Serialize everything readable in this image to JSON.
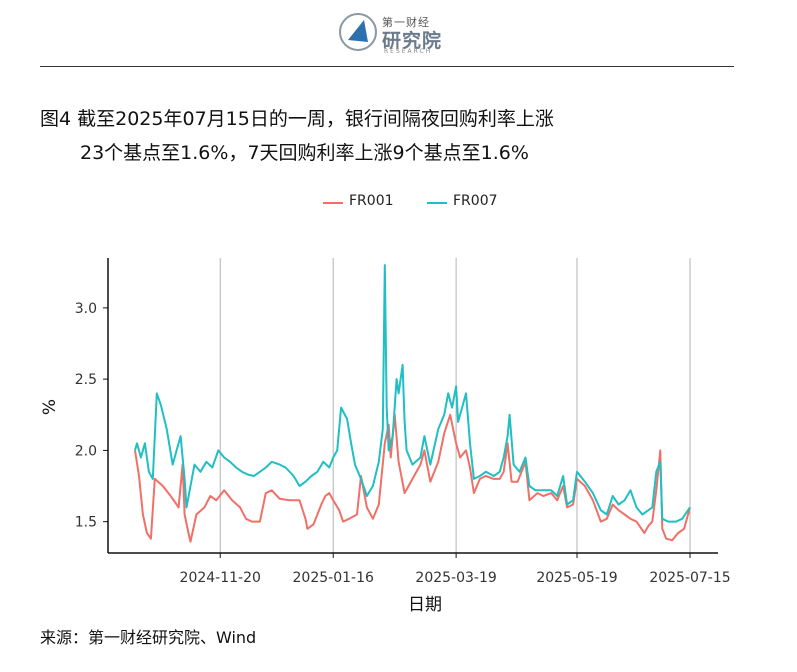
{
  "brand": {
    "small": "第一财经",
    "name": "研究院",
    "research": "RESEARCH"
  },
  "figure": {
    "title_line1": "图4  截至2025年07月15日的一周，银行间隔夜回购利率上涨",
    "title_line2": "23个基点至1.6%，7天回购利率上涨9个基点至1.6%",
    "source": "来源：第一财经研究院、Wind"
  },
  "colors": {
    "FR001": "#f07068",
    "FR007": "#1fbfc4",
    "grid": "#b3b3b3"
  },
  "chart_data": {
    "type": "line",
    "xlabel": "日期",
    "ylabel": "%",
    "x_ticks": [
      "2024-11-20",
      "2025-01-16",
      "2025-03-19",
      "2025-05-19",
      "2025-07-15"
    ],
    "y_ticks": [
      1.5,
      2.0,
      2.5,
      3.0
    ],
    "xlim": [
      "2024-10-08",
      "2025-07-15"
    ],
    "ylim": [
      1.28,
      3.35
    ],
    "grid": "vertical",
    "legend_position": "top",
    "series": [
      {
        "name": "FR001",
        "points": [
          [
            "2024-10-08",
            2.0
          ],
          [
            "2024-10-10",
            1.82
          ],
          [
            "2024-10-12",
            1.55
          ],
          [
            "2024-10-14",
            1.42
          ],
          [
            "2024-10-16",
            1.38
          ],
          [
            "2024-10-18",
            1.8
          ],
          [
            "2024-10-22",
            1.75
          ],
          [
            "2024-10-26",
            1.68
          ],
          [
            "2024-10-30",
            1.6
          ],
          [
            "2024-11-01",
            1.9
          ],
          [
            "2024-11-02",
            1.55
          ],
          [
            "2024-11-04",
            1.42
          ],
          [
            "2024-11-05",
            1.36
          ],
          [
            "2024-11-08",
            1.55
          ],
          [
            "2024-11-12",
            1.6
          ],
          [
            "2024-11-15",
            1.68
          ],
          [
            "2024-11-18",
            1.65
          ],
          [
            "2024-11-22",
            1.72
          ],
          [
            "2024-11-26",
            1.65
          ],
          [
            "2024-11-30",
            1.6
          ],
          [
            "2024-12-03",
            1.52
          ],
          [
            "2024-12-06",
            1.5
          ],
          [
            "2024-12-10",
            1.5
          ],
          [
            "2024-12-13",
            1.7
          ],
          [
            "2024-12-16",
            1.72
          ],
          [
            "2024-12-20",
            1.66
          ],
          [
            "2024-12-25",
            1.65
          ],
          [
            "2024-12-30",
            1.65
          ],
          [
            "2025-01-02",
            1.52
          ],
          [
            "2025-01-03",
            1.45
          ],
          [
            "2025-01-06",
            1.48
          ],
          [
            "2025-01-08",
            1.55
          ],
          [
            "2025-01-10",
            1.62
          ],
          [
            "2025-01-12",
            1.68
          ],
          [
            "2025-01-14",
            1.7
          ],
          [
            "2025-01-16",
            1.65
          ],
          [
            "2025-01-19",
            1.58
          ],
          [
            "2025-01-21",
            1.5
          ],
          [
            "2025-01-24",
            1.52
          ],
          [
            "2025-01-28",
            1.55
          ],
          [
            "2025-01-30",
            1.82
          ],
          [
            "2025-02-02",
            1.6
          ],
          [
            "2025-02-05",
            1.52
          ],
          [
            "2025-02-08",
            1.62
          ],
          [
            "2025-02-11",
            2.05
          ],
          [
            "2025-02-13",
            2.18
          ],
          [
            "2025-02-14",
            1.95
          ],
          [
            "2025-02-16",
            2.25
          ],
          [
            "2025-02-18",
            1.92
          ],
          [
            "2025-02-21",
            1.7
          ],
          [
            "2025-02-25",
            1.8
          ],
          [
            "2025-03-01",
            1.9
          ],
          [
            "2025-03-03",
            2.0
          ],
          [
            "2025-03-06",
            1.78
          ],
          [
            "2025-03-10",
            1.92
          ],
          [
            "2025-03-13",
            2.12
          ],
          [
            "2025-03-16",
            2.25
          ],
          [
            "2025-03-19",
            2.05
          ],
          [
            "2025-03-21",
            1.95
          ],
          [
            "2025-03-24",
            2.0
          ],
          [
            "2025-03-26",
            1.88
          ],
          [
            "2025-03-28",
            1.7
          ],
          [
            "2025-03-31",
            1.8
          ],
          [
            "2025-04-03",
            1.82
          ],
          [
            "2025-04-07",
            1.8
          ],
          [
            "2025-04-10",
            1.8
          ],
          [
            "2025-04-12",
            1.85
          ],
          [
            "2025-04-14",
            2.05
          ],
          [
            "2025-04-16",
            1.78
          ],
          [
            "2025-04-19",
            1.78
          ],
          [
            "2025-04-23",
            1.92
          ],
          [
            "2025-04-25",
            1.65
          ],
          [
            "2025-04-29",
            1.7
          ],
          [
            "2025-05-02",
            1.68
          ],
          [
            "2025-05-06",
            1.7
          ],
          [
            "2025-05-09",
            1.65
          ],
          [
            "2025-05-12",
            1.75
          ],
          [
            "2025-05-14",
            1.6
          ],
          [
            "2025-05-17",
            1.62
          ],
          [
            "2025-05-19",
            1.8
          ],
          [
            "2025-05-23",
            1.75
          ],
          [
            "2025-05-27",
            1.65
          ],
          [
            "2025-05-31",
            1.5
          ],
          [
            "2025-06-03",
            1.52
          ],
          [
            "2025-06-06",
            1.62
          ],
          [
            "2025-06-09",
            1.58
          ],
          [
            "2025-06-12",
            1.55
          ],
          [
            "2025-06-15",
            1.52
          ],
          [
            "2025-06-18",
            1.5
          ],
          [
            "2025-06-20",
            1.46
          ],
          [
            "2025-06-22",
            1.42
          ],
          [
            "2025-06-24",
            1.47
          ],
          [
            "2025-06-26",
            1.5
          ],
          [
            "2025-06-28",
            1.72
          ],
          [
            "2025-06-30",
            2.0
          ],
          [
            "2025-07-01",
            1.45
          ],
          [
            "2025-07-03",
            1.38
          ],
          [
            "2025-07-06",
            1.37
          ],
          [
            "2025-07-09",
            1.42
          ],
          [
            "2025-07-12",
            1.45
          ],
          [
            "2025-07-15",
            1.6
          ]
        ]
      },
      {
        "name": "FR007",
        "points": [
          [
            "2024-10-08",
            2.0
          ],
          [
            "2024-10-09",
            2.05
          ],
          [
            "2024-10-11",
            1.95
          ],
          [
            "2024-10-13",
            2.05
          ],
          [
            "2024-10-15",
            1.85
          ],
          [
            "2024-10-17",
            1.8
          ],
          [
            "2024-10-19",
            2.4
          ],
          [
            "2024-10-21",
            2.32
          ],
          [
            "2024-10-24",
            2.15
          ],
          [
            "2024-10-27",
            1.9
          ],
          [
            "2024-10-29",
            2.0
          ],
          [
            "2024-10-31",
            2.1
          ],
          [
            "2024-11-02",
            1.8
          ],
          [
            "2024-11-03",
            1.6
          ],
          [
            "2024-11-05",
            1.75
          ],
          [
            "2024-11-07",
            1.9
          ],
          [
            "2024-11-10",
            1.85
          ],
          [
            "2024-11-13",
            1.92
          ],
          [
            "2024-11-16",
            1.88
          ],
          [
            "2024-11-19",
            2.0
          ],
          [
            "2024-11-22",
            1.95
          ],
          [
            "2024-11-25",
            1.92
          ],
          [
            "2024-11-28",
            1.88
          ],
          [
            "2024-12-01",
            1.85
          ],
          [
            "2024-12-04",
            1.83
          ],
          [
            "2024-12-07",
            1.82
          ],
          [
            "2024-12-10",
            1.85
          ],
          [
            "2024-12-13",
            1.88
          ],
          [
            "2024-12-16",
            1.92
          ],
          [
            "2024-12-20",
            1.9
          ],
          [
            "2024-12-23",
            1.88
          ],
          [
            "2024-12-27",
            1.82
          ],
          [
            "2024-12-30",
            1.75
          ],
          [
            "2025-01-02",
            1.78
          ],
          [
            "2025-01-05",
            1.82
          ],
          [
            "2025-01-08",
            1.85
          ],
          [
            "2025-01-11",
            1.92
          ],
          [
            "2025-01-14",
            1.88
          ],
          [
            "2025-01-16",
            1.95
          ],
          [
            "2025-01-18",
            2.0
          ],
          [
            "2025-01-20",
            2.3
          ],
          [
            "2025-01-23",
            2.22
          ],
          [
            "2025-01-25",
            2.05
          ],
          [
            "2025-01-27",
            1.9
          ],
          [
            "2025-01-30",
            1.8
          ],
          [
            "2025-02-02",
            1.68
          ],
          [
            "2025-02-05",
            1.75
          ],
          [
            "2025-02-08",
            1.92
          ],
          [
            "2025-02-10",
            2.15
          ],
          [
            "2025-02-11",
            3.3
          ],
          [
            "2025-02-12",
            2.3
          ],
          [
            "2025-02-13",
            2.0
          ],
          [
            "2025-02-15",
            2.1
          ],
          [
            "2025-02-17",
            2.5
          ],
          [
            "2025-02-18",
            2.4
          ],
          [
            "2025-02-20",
            2.6
          ],
          [
            "2025-02-21",
            2.2
          ],
          [
            "2025-02-22",
            2.0
          ],
          [
            "2025-02-25",
            1.9
          ],
          [
            "2025-03-01",
            1.95
          ],
          [
            "2025-03-03",
            2.1
          ],
          [
            "2025-03-06",
            1.9
          ],
          [
            "2025-03-10",
            2.15
          ],
          [
            "2025-03-13",
            2.25
          ],
          [
            "2025-03-15",
            2.4
          ],
          [
            "2025-03-17",
            2.3
          ],
          [
            "2025-03-19",
            2.45
          ],
          [
            "2025-03-20",
            2.2
          ],
          [
            "2025-03-22",
            2.3
          ],
          [
            "2025-03-24",
            2.4
          ],
          [
            "2025-03-26",
            2.05
          ],
          [
            "2025-03-28",
            1.8
          ],
          [
            "2025-03-31",
            1.82
          ],
          [
            "2025-04-03",
            1.85
          ],
          [
            "2025-04-07",
            1.82
          ],
          [
            "2025-04-10",
            1.85
          ],
          [
            "2025-04-12",
            1.95
          ],
          [
            "2025-04-14",
            2.1
          ],
          [
            "2025-04-15",
            2.25
          ],
          [
            "2025-04-17",
            1.9
          ],
          [
            "2025-04-20",
            1.85
          ],
          [
            "2025-04-23",
            1.95
          ],
          [
            "2025-04-25",
            1.75
          ],
          [
            "2025-04-28",
            1.72
          ],
          [
            "2025-05-02",
            1.72
          ],
          [
            "2025-05-06",
            1.72
          ],
          [
            "2025-05-09",
            1.68
          ],
          [
            "2025-05-12",
            1.82
          ],
          [
            "2025-05-14",
            1.62
          ],
          [
            "2025-05-17",
            1.65
          ],
          [
            "2025-05-19",
            1.85
          ],
          [
            "2025-05-23",
            1.78
          ],
          [
            "2025-05-27",
            1.7
          ],
          [
            "2025-05-31",
            1.58
          ],
          [
            "2025-06-03",
            1.55
          ],
          [
            "2025-06-06",
            1.68
          ],
          [
            "2025-06-09",
            1.62
          ],
          [
            "2025-06-12",
            1.65
          ],
          [
            "2025-06-15",
            1.72
          ],
          [
            "2025-06-18",
            1.6
          ],
          [
            "2025-06-21",
            1.55
          ],
          [
            "2025-06-24",
            1.58
          ],
          [
            "2025-06-26",
            1.6
          ],
          [
            "2025-06-28",
            1.85
          ],
          [
            "2025-06-30",
            1.92
          ],
          [
            "2025-07-01",
            1.52
          ],
          [
            "2025-07-04",
            1.5
          ],
          [
            "2025-07-08",
            1.5
          ],
          [
            "2025-07-11",
            1.52
          ],
          [
            "2025-07-15",
            1.6
          ]
        ]
      }
    ]
  }
}
